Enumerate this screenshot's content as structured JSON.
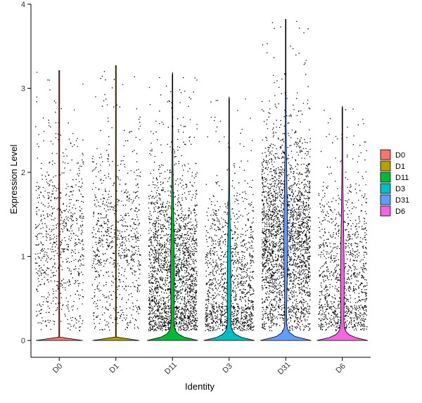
{
  "chart_data": {
    "type": "violin",
    "xlabel": "Identity",
    "ylabel": "Expression Level",
    "ylim": [
      -0.2,
      4
    ],
    "yticks": [
      0,
      1,
      2,
      3,
      4
    ],
    "categories": [
      "D0",
      "D1",
      "D11",
      "D3",
      "D31",
      "D6"
    ],
    "colors": [
      "#F8766D",
      "#B79F00",
      "#00BA38",
      "#00BFC4",
      "#619CFF",
      "#F564E3"
    ],
    "legend_position": "right",
    "grid": false,
    "groups": [
      {
        "name": "D0",
        "max": 3.21,
        "mean": 1.2,
        "zero_peak": 0.0,
        "density_width": 0.95,
        "n_points": 750
      },
      {
        "name": "D1",
        "max": 3.27,
        "mean": 1.1,
        "zero_peak": 0.0,
        "density_width": 0.95,
        "n_points": 800
      },
      {
        "name": "D11",
        "max": 3.19,
        "mean": 0.8,
        "zero_peak": 0.35,
        "density_width": 0.95,
        "n_points": 2200
      },
      {
        "name": "D3",
        "max": 2.9,
        "mean": 0.6,
        "zero_peak": 0.12,
        "density_width": 0.95,
        "n_points": 1300
      },
      {
        "name": "D31",
        "max": 3.82,
        "mean": 1.2,
        "zero_peak": 0.4,
        "density_width": 0.95,
        "n_points": 3800
      },
      {
        "name": "D6",
        "max": 2.79,
        "mean": 0.7,
        "zero_peak": 0.2,
        "density_width": 0.95,
        "n_points": 1100
      }
    ]
  }
}
